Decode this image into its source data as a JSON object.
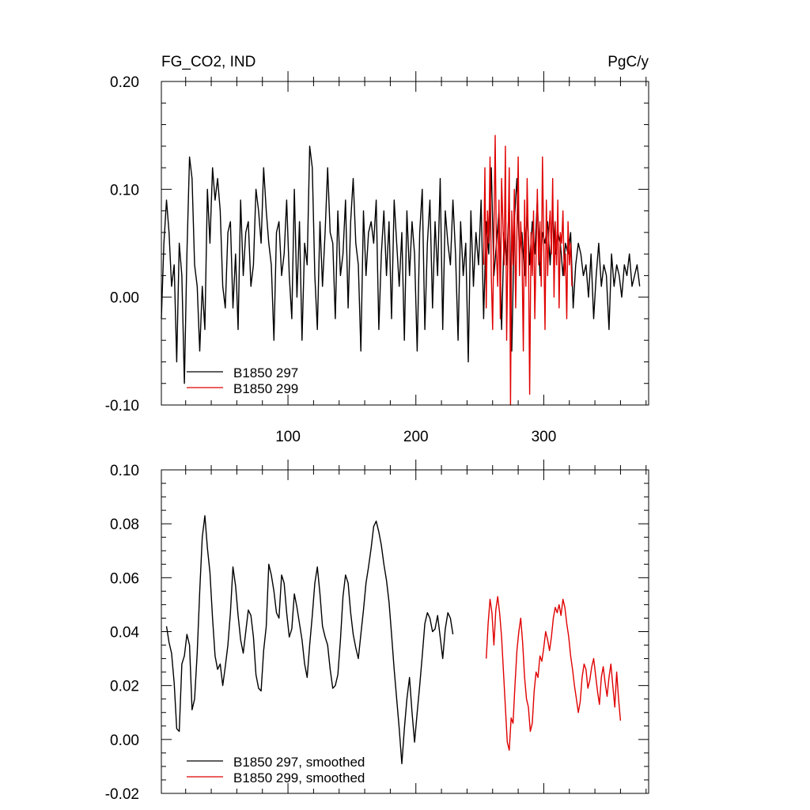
{
  "chart_data": [
    {
      "type": "line",
      "title": "FG_CO2, IND",
      "units": "PgC/y",
      "xlim": [
        1,
        382
      ],
      "ylim": [
        -0.1,
        0.2
      ],
      "x_ticks": [
        100,
        200,
        300
      ],
      "y_ticks": [
        "-0.10",
        "0.00",
        "0.10",
        "0.20"
      ],
      "legend_position": "bottom-left",
      "grid": false,
      "series": [
        {
          "name": "B1850 297",
          "color": "#000000",
          "x_start": 1,
          "x_step": 2,
          "values": [
            -0.02,
            0.05,
            0.09,
            0.06,
            0.01,
            0.03,
            -0.06,
            0.05,
            0.02,
            -0.08,
            0.04,
            0.13,
            0.11,
            0.03,
            0.01,
            -0.05,
            0.01,
            -0.03,
            0.1,
            0.05,
            0.12,
            0.09,
            0.11,
            0.08,
            0.01,
            -0.01,
            0.06,
            0.07,
            -0.01,
            0.04,
            -0.03,
            0.09,
            0.02,
            0.06,
            0.07,
            0.01,
            0.03,
            0.1,
            0.08,
            0.05,
            0.12,
            0.08,
            0.05,
            0.03,
            -0.04,
            0.06,
            0.07,
            0.02,
            0.04,
            0.09,
            0.02,
            -0.02,
            0.1,
            0.0,
            0.07,
            -0.04,
            0.05,
            0.03,
            0.14,
            0.12,
            0.02,
            -0.03,
            0.07,
            0.01,
            0.06,
            0.12,
            0.06,
            0.05,
            -0.02,
            0.08,
            0.02,
            0.04,
            0.09,
            -0.01,
            0.07,
            0.11,
            0.05,
            0.03,
            -0.05,
            0.08,
            0.02,
            0.06,
            0.07,
            0.05,
            0.09,
            -0.03,
            0.04,
            0.08,
            0.02,
            0.07,
            -0.02,
            0.09,
            0.05,
            0.01,
            0.06,
            -0.04,
            0.08,
            0.02,
            0.07,
            0.04,
            -0.05,
            0.06,
            0.1,
            -0.03,
            0.05,
            0.09,
            -0.01,
            0.07,
            0.02,
            0.11,
            -0.03,
            0.08,
            0.05,
            0.03,
            0.09,
            0.04,
            -0.04,
            0.07,
            0.02,
            0.05,
            -0.06,
            0.08,
            0.01,
            0.06,
            0.03,
            0.09,
            -0.02,
            0.07,
            0.04,
            0.12,
            0.02,
            0.05,
            0.08,
            -0.03,
            0.06,
            0.03,
            0.09,
            -0.05,
            0.07,
            0.11,
            0.04,
            0.06,
            0.02,
            0.08,
            0.03,
            0.07,
            0.04,
            0.09,
            0.02,
            0.06,
            0.05,
            0.07,
            0.03,
            0.08,
            0.04,
            0.06,
            0.05,
            0.02,
            0.05,
            0.04,
            0.06,
            -0.01,
            0.03,
            0.05,
            0.04,
            0.02,
            0.03,
            0.0,
            0.04,
            -0.02,
            0.02,
            0.05,
            0.01,
            0.03,
            0.02,
            -0.03,
            0.04,
            0.01,
            0.03,
            0.02,
            0.0,
            0.03,
            0.02,
            0.04,
            0.01,
            0.02,
            0.03,
            0.01
          ]
        },
        {
          "name": "B1850 299",
          "color": "#e00000",
          "x_start": 253,
          "x_step": 1,
          "values": [
            0.03,
            0.12,
            -0.01,
            0.08,
            0.05,
            0.13,
            0.02,
            -0.03,
            0.06,
            0.15,
            0.04,
            0.01,
            0.09,
            -0.02,
            0.11,
            0.07,
            0.03,
            0.14,
            -0.04,
            0.05,
            0.12,
            -0.1,
            0.08,
            0.03,
            0.1,
            -0.01,
            0.06,
            0.13,
            0.02,
            0.07,
            0.04,
            -0.05,
            0.09,
            0.01,
            0.11,
            0.05,
            -0.09,
            0.06,
            0.02,
            0.08,
            -0.02,
            0.04,
            0.1,
            0.03,
            0.07,
            0.01,
            0.13,
            0.05,
            -0.03,
            0.09,
            0.02,
            0.06,
            0.08,
            0.04,
            0.11,
            0.0,
            0.07,
            0.03,
            0.09,
            -0.01,
            0.06,
            0.05,
            0.08,
            0.02,
            0.04,
            -0.02,
            0.07,
            0.03,
            0.05,
            0.01
          ]
        }
      ]
    },
    {
      "type": "line",
      "xlim": [
        1,
        382
      ],
      "ylim": [
        -0.02,
        0.1
      ],
      "y_ticks": [
        "-0.02",
        "0.00",
        "0.02",
        "0.04",
        "0.06",
        "0.08",
        "0.10"
      ],
      "legend_position": "bottom-left",
      "grid": false,
      "series": [
        {
          "name": "B1850 297, smoothed",
          "color": "#000000",
          "x_start": 5,
          "x_step": 2,
          "values": [
            0.042,
            0.036,
            0.032,
            0.021,
            0.004,
            0.003,
            0.028,
            0.031,
            0.039,
            0.035,
            0.011,
            0.015,
            0.032,
            0.055,
            0.075,
            0.083,
            0.071,
            0.062,
            0.045,
            0.031,
            0.026,
            0.028,
            0.02,
            0.027,
            0.035,
            0.047,
            0.064,
            0.057,
            0.046,
            0.037,
            0.032,
            0.04,
            0.048,
            0.046,
            0.038,
            0.024,
            0.019,
            0.018,
            0.033,
            0.042,
            0.065,
            0.061,
            0.055,
            0.047,
            0.045,
            0.061,
            0.058,
            0.047,
            0.038,
            0.041,
            0.054,
            0.049,
            0.043,
            0.037,
            0.028,
            0.023,
            0.035,
            0.046,
            0.058,
            0.064,
            0.054,
            0.042,
            0.038,
            0.035,
            0.026,
            0.019,
            0.02,
            0.024,
            0.037,
            0.053,
            0.061,
            0.058,
            0.047,
            0.039,
            0.034,
            0.03,
            0.039,
            0.048,
            0.058,
            0.064,
            0.071,
            0.079,
            0.081,
            0.077,
            0.072,
            0.065,
            0.059,
            0.051,
            0.039,
            0.026,
            0.015,
            0.004,
            -0.009,
            0.004,
            0.015,
            0.023,
            0.01,
            -0.001,
            0.01,
            0.02,
            0.031,
            0.043,
            0.047,
            0.045,
            0.04,
            0.041,
            0.046,
            0.038,
            0.03,
            0.041,
            0.047,
            0.045,
            0.039
          ]
        },
        {
          "name": "B1850 299, smoothed",
          "color": "#e00000",
          "x_start": 255,
          "x_step": 1.5,
          "values": [
            0.03,
            0.043,
            0.052,
            0.047,
            0.035,
            0.048,
            0.053,
            0.047,
            0.038,
            0.025,
            0.012,
            -0.001,
            -0.004,
            0.008,
            0.006,
            0.02,
            0.033,
            0.04,
            0.045,
            0.036,
            0.023,
            0.015,
            0.012,
            0.003,
            0.006,
            0.018,
            0.025,
            0.023,
            0.031,
            0.029,
            0.034,
            0.04,
            0.037,
            0.033,
            0.038,
            0.045,
            0.049,
            0.047,
            0.05,
            0.046,
            0.052,
            0.049,
            0.043,
            0.038,
            0.031,
            0.026,
            0.02,
            0.015,
            0.01,
            0.014,
            0.023,
            0.028,
            0.026,
            0.019,
            0.022,
            0.027,
            0.03,
            0.024,
            0.018,
            0.013,
            0.023,
            0.027,
            0.021,
            0.016,
            0.023,
            0.028,
            0.02,
            0.012,
            0.025,
            0.015,
            0.007
          ]
        }
      ]
    }
  ]
}
